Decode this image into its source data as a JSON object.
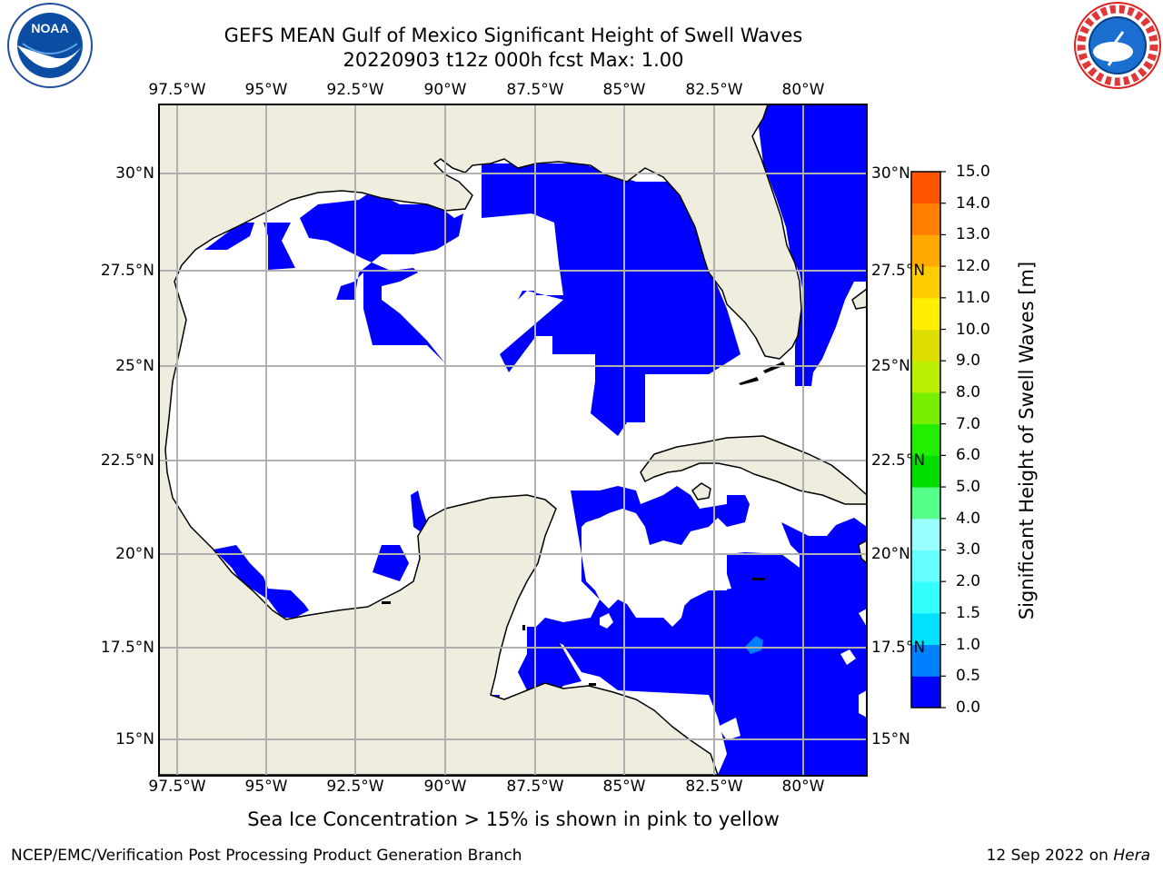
{
  "title": {
    "line1": "GEFS MEAN Gulf of Mexico Significant Height of Swell Waves",
    "line2": "20220903 t12z 000h fcst   Max: 1.00"
  },
  "map": {
    "lon_labels": [
      "97.5°W",
      "95°W",
      "92.5°W",
      "90°W",
      "87.5°W",
      "85°W",
      "82.5°W",
      "80°W"
    ],
    "lat_labels": [
      "30°N",
      "27.5°N",
      "25°N",
      "22.5°N",
      "20°N",
      "17.5°N",
      "15°N"
    ],
    "lon_range": [
      -98,
      -78
    ],
    "lat_range": [
      14,
      32
    ],
    "land_color": "#efedde",
    "grid_color": "#b0b0b0",
    "swell_color_low": "#0000ff",
    "swell_color_mid": "#0080ff"
  },
  "colorbar": {
    "title": "Significant Height of Swell Waves [m]",
    "ticks": [
      "0.0",
      "0.5",
      "1.0",
      "1.5",
      "2.0",
      "3.0",
      "4.0",
      "5.0",
      "6.0",
      "7.0",
      "8.0",
      "9.0",
      "10.0",
      "11.0",
      "12.0",
      "13.0",
      "14.0",
      "15.0"
    ],
    "colors": [
      "#0000ff",
      "#0080ff",
      "#00e0ff",
      "#33ffff",
      "#66ffff",
      "#99ffff",
      "#55ff88",
      "#00dd00",
      "#22ee00",
      "#77ee00",
      "#bbee00",
      "#dddd00",
      "#ffee00",
      "#ffcc00",
      "#ffaa00",
      "#ff8000",
      "#ff5500",
      "#ff2200",
      "#ff0000"
    ]
  },
  "annotation": "Sea Ice Concentration > 15% is shown in pink to yellow",
  "footer": {
    "left": "NCEP/EMC/Verification Post Processing Product Generation Branch",
    "right_date": "12 Sep 2022 on ",
    "right_machine": "Hera"
  },
  "logos": {
    "noaa": "NOAA",
    "nws": "NATIONAL WEATHER SERVICE"
  }
}
